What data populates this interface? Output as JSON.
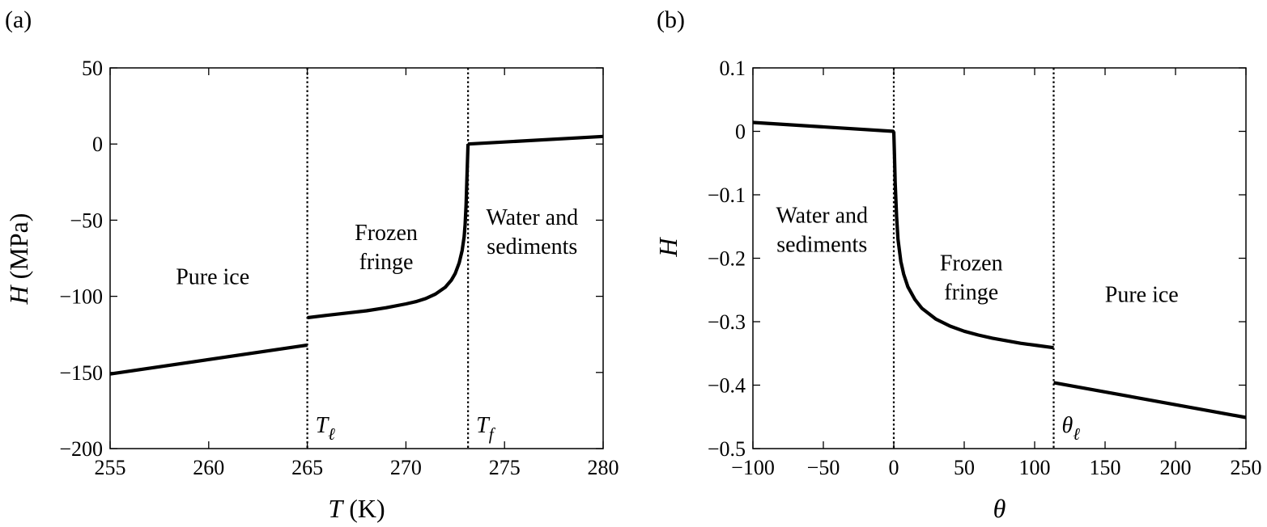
{
  "chart_data": [
    {
      "type": "line",
      "panel_label": "(a)",
      "xlabel": {
        "symbol": "T",
        "unit": " (K)"
      },
      "ylabel": {
        "symbol": "H",
        "unit": " (MPa)"
      },
      "xlim": [
        255,
        280
      ],
      "ylim": [
        -200,
        50
      ],
      "xticks": [
        255,
        260,
        265,
        270,
        275,
        280
      ],
      "yticks": [
        50,
        0,
        -50,
        -100,
        -150,
        -200
      ],
      "xtick_labels": [
        "255",
        "260",
        "265",
        "270",
        "275",
        "280"
      ],
      "ytick_labels": [
        "50",
        "0",
        "−50",
        "−100",
        "−150",
        "−200"
      ],
      "grid": false,
      "vlines": [
        {
          "x": 265,
          "label": "T",
          "sub": "ℓ"
        },
        {
          "x": 273.15,
          "label": "T",
          "sub": "f"
        }
      ],
      "regions": [
        {
          "x": 260.2,
          "y": -92,
          "lines": [
            "Pure ice"
          ]
        },
        {
          "x": 269.0,
          "y": -63,
          "lines": [
            "Frozen",
            "fringe"
          ]
        },
        {
          "x": 276.4,
          "y": -53,
          "lines": [
            "Water and",
            "sediments"
          ]
        }
      ],
      "series": [
        {
          "segment": "pure-ice",
          "x": [
            255,
            265
          ],
          "y": [
            -151,
            -132
          ]
        },
        {
          "segment": "frozen-fringe",
          "x": [
            265,
            266,
            267,
            268,
            269,
            270,
            270.5,
            271,
            271.5,
            272,
            272.3,
            272.5,
            272.7,
            272.85,
            272.95,
            273.0,
            273.05,
            273.1,
            273.15
          ],
          "y": [
            -114,
            -112.5,
            -111,
            -109.5,
            -107.5,
            -105,
            -103.5,
            -101.5,
            -98.5,
            -94,
            -89.5,
            -85,
            -78,
            -70,
            -61,
            -53,
            -40,
            -20,
            0
          ]
        },
        {
          "segment": "water-sediments",
          "x": [
            273.15,
            280
          ],
          "y": [
            0,
            5
          ]
        }
      ]
    },
    {
      "type": "line",
      "panel_label": "(b)",
      "xlabel": {
        "symbol": "θ",
        "unit": ""
      },
      "ylabel": {
        "symbol": "H",
        "unit": ""
      },
      "xlim": [
        -100,
        250
      ],
      "ylim": [
        -0.5,
        0.1
      ],
      "xticks": [
        -100,
        -50,
        0,
        50,
        100,
        150,
        200,
        250
      ],
      "yticks": [
        0.1,
        0,
        -0.1,
        -0.2,
        -0.3,
        -0.4,
        -0.5
      ],
      "xtick_labels": [
        "−100",
        "−50",
        "0",
        "50",
        "100",
        "150",
        "200",
        "250"
      ],
      "ytick_labels": [
        "0.1",
        "0",
        "−0.1",
        "−0.2",
        "−0.3",
        "−0.4",
        "−0.5"
      ],
      "grid": false,
      "vlines": [
        {
          "x": 0,
          "label": "",
          "sub": ""
        },
        {
          "x": 113.5,
          "label": "θ",
          "sub": "ℓ"
        }
      ],
      "regions": [
        {
          "x": -51,
          "y": -0.144,
          "lines": [
            "Water and",
            "sediments"
          ]
        },
        {
          "x": 55,
          "y": -0.219,
          "lines": [
            "Frozen",
            "fringe"
          ]
        },
        {
          "x": 176,
          "y": -0.269,
          "lines": [
            "Pure ice"
          ]
        }
      ],
      "series": [
        {
          "segment": "water-sediments",
          "x": [
            -100,
            0
          ],
          "y": [
            0.014,
            0
          ]
        },
        {
          "segment": "frozen-fringe",
          "x": [
            0,
            0.5,
            1,
            2,
            3,
            5,
            7,
            10,
            15,
            20,
            30,
            40,
            50,
            60,
            70,
            80,
            90,
            100,
            113.5
          ],
          "y": [
            0,
            -0.04,
            -0.08,
            -0.135,
            -0.17,
            -0.205,
            -0.225,
            -0.245,
            -0.265,
            -0.279,
            -0.296,
            -0.307,
            -0.315,
            -0.321,
            -0.326,
            -0.33,
            -0.334,
            -0.337,
            -0.341
          ]
        },
        {
          "segment": "pure-ice",
          "x": [
            113.5,
            250
          ],
          "y": [
            -0.396,
            -0.451
          ]
        }
      ]
    }
  ]
}
